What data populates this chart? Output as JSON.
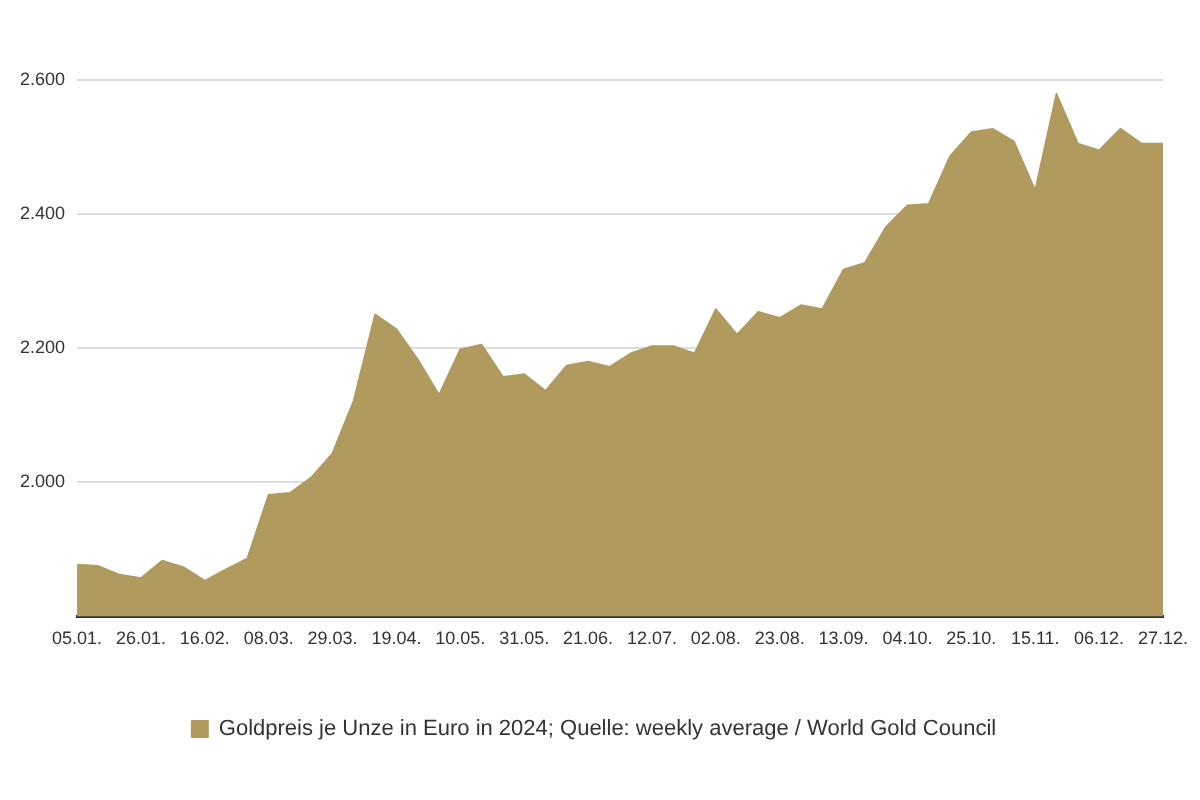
{
  "chart_data": {
    "type": "area",
    "categories": [
      "05.01.",
      null,
      null,
      "26.01.",
      null,
      null,
      "16.02.",
      null,
      null,
      "08.03.",
      null,
      null,
      "29.03.",
      null,
      null,
      "19.04.",
      null,
      null,
      "10.05.",
      null,
      null,
      "31.05.",
      null,
      null,
      "21.06.",
      null,
      null,
      "12.07.",
      null,
      null,
      "02.08.",
      null,
      null,
      "23.08.",
      null,
      null,
      "13.09.",
      null,
      null,
      "04.10.",
      null,
      null,
      "25.10.",
      null,
      null,
      "15.11.",
      null,
      null,
      "06.12.",
      null,
      null,
      "27.12."
    ],
    "series": [
      {
        "name": "Goldpreis je Unze in Euro in 2024; Quelle: weekly average / World Gold Council",
        "color": "#b09a5e",
        "values": [
          1877,
          1875,
          1862,
          1857,
          1883,
          1873,
          1853,
          1870,
          1886,
          1981,
          1984,
          2007,
          2043,
          2122,
          2250,
          2228,
          2183,
          2130,
          2198,
          2205,
          2157,
          2161,
          2136,
          2174,
          2180,
          2172,
          2192,
          2203,
          2203,
          2192,
          2258,
          2220,
          2254,
          2245,
          2264,
          2258,
          2317,
          2327,
          2381,
          2413,
          2415,
          2486,
          2522,
          2527,
          2508,
          2435,
          2579,
          2505,
          2495,
          2527,
          2505,
          2505
        ]
      }
    ],
    "ylim": [
      1800,
      2600
    ],
    "yticks": [
      {
        "value": 2000,
        "label": "2.000"
      },
      {
        "value": 2200,
        "label": "2.200"
      },
      {
        "value": 2400,
        "label": "2.400"
      },
      {
        "value": 2600,
        "label": "2.600"
      }
    ],
    "grid": "y",
    "legend": "bottom"
  }
}
